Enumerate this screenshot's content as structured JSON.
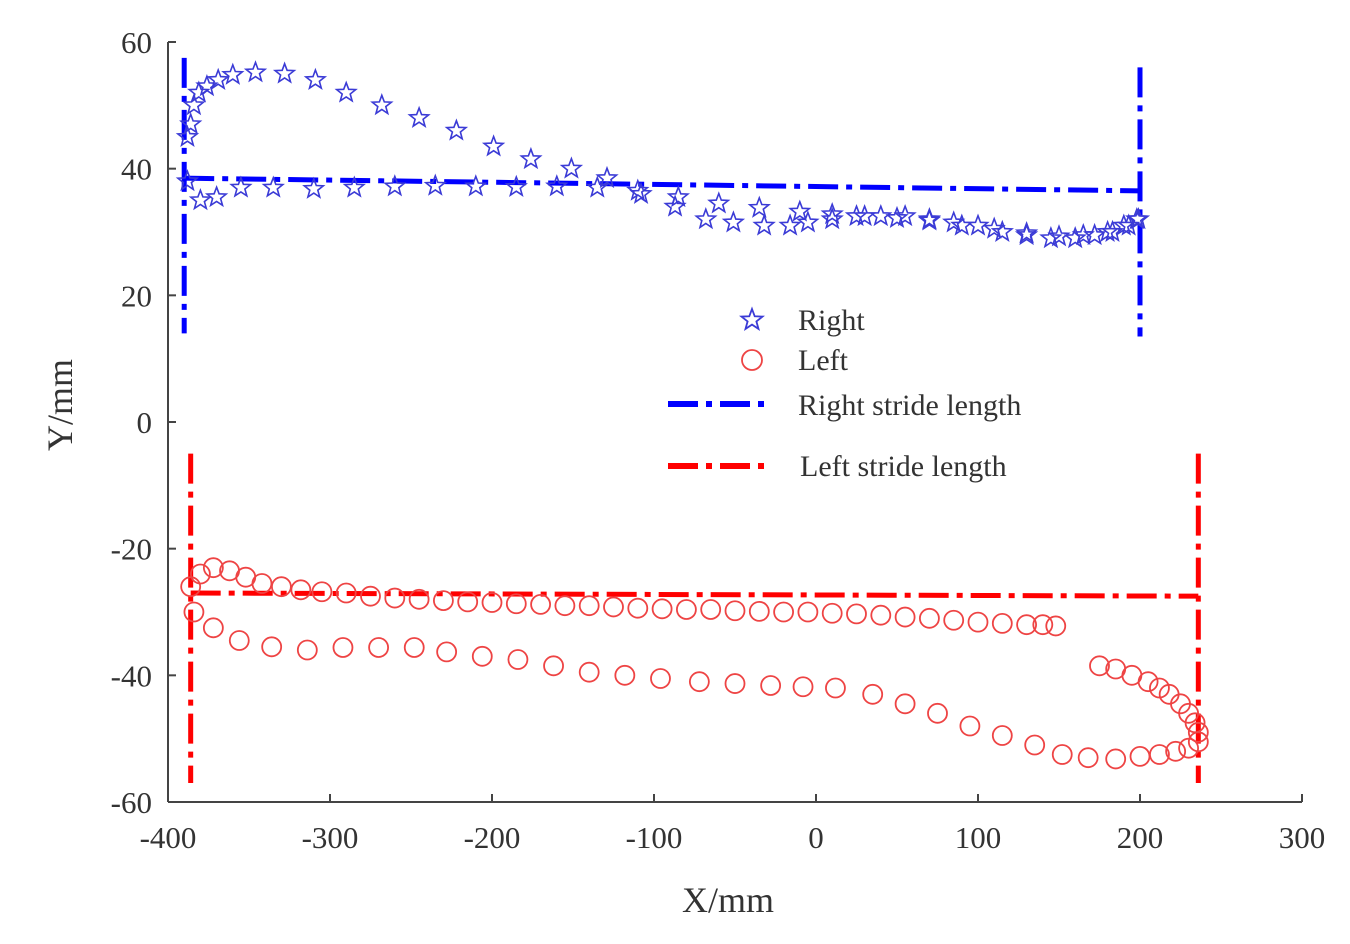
{
  "chart_data": {
    "type": "scatter",
    "title": "",
    "xlabel": "X/mm",
    "ylabel": "Y/mm",
    "xlim": [
      -400,
      300
    ],
    "ylim": [
      -60,
      60
    ],
    "x_ticks": [
      -400,
      -300,
      -200,
      -100,
      0,
      100,
      200,
      300
    ],
    "y_ticks": [
      -60,
      -40,
      -20,
      0,
      20,
      40,
      60
    ],
    "x_tick_labels": [
      "-400",
      "-300",
      "-200",
      "-100",
      "0",
      "100",
      "200",
      "300"
    ],
    "y_tick_labels": [
      "-60",
      "-40",
      "-20",
      "0",
      "20",
      "40",
      "60"
    ],
    "grid": false,
    "legend": {
      "position": "center-right",
      "entries": [
        "Right",
        "Left",
        "Right stride length",
        "Left stride length"
      ]
    },
    "colors": {
      "right": "#3b3bd6",
      "left": "#ee4444",
      "right_stride": "#0000ff",
      "left_stride": "#ff0000"
    },
    "series": [
      {
        "name": "Right",
        "marker": "star",
        "color": "#3b3bd6",
        "x": [
          -388,
          -386,
          -384,
          -381,
          -376,
          -369,
          -360,
          -346,
          -328,
          -309,
          -290,
          -268,
          -245,
          -222,
          -199,
          -176,
          -151,
          -129,
          -108,
          -87,
          -68,
          -51,
          -32,
          -16,
          -5,
          10,
          25,
          40,
          55,
          70,
          85,
          100,
          115,
          130,
          145,
          160,
          172,
          183,
          193,
          199,
          -388,
          -380,
          -370,
          -355,
          -335,
          -310,
          -285,
          -260,
          -235,
          -210,
          -185,
          -160,
          -135,
          -110,
          -85,
          -60,
          -35,
          -10,
          10,
          30,
          50,
          70,
          90,
          110,
          130,
          150,
          165,
          180,
          190,
          198
        ],
        "y": [
          45,
          47,
          50,
          52,
          53,
          54,
          54.8,
          55.2,
          55,
          54,
          52,
          50,
          48,
          46,
          43.5,
          41.5,
          40,
          38.5,
          36,
          34,
          32,
          31.5,
          31,
          31,
          31.5,
          32,
          32.5,
          32.5,
          32.5,
          32,
          31.5,
          31,
          30,
          29.5,
          29,
          29,
          29.5,
          30,
          31,
          32,
          38,
          35,
          35.5,
          37,
          37,
          36.8,
          37,
          37.2,
          37.3,
          37.2,
          37.1,
          37.2,
          37,
          36.5,
          35.5,
          34.5,
          33.8,
          33.2,
          32.8,
          32.5,
          32.2,
          31.8,
          31,
          30.5,
          29.8,
          29.3,
          29.5,
          30,
          31,
          32
        ]
      },
      {
        "name": "Left",
        "marker": "circle",
        "color": "#ee4444",
        "x": [
          -386,
          -380,
          -372,
          -362,
          -352,
          -342,
          -330,
          -318,
          -305,
          -290,
          -275,
          -260,
          -245,
          -230,
          -215,
          -200,
          -185,
          -170,
          -155,
          -140,
          -125,
          -110,
          -95,
          -80,
          -65,
          -50,
          -35,
          -20,
          -5,
          10,
          25,
          40,
          55,
          70,
          85,
          100,
          115,
          130,
          140,
          148,
          -384,
          -372,
          -356,
          -336,
          -314,
          -292,
          -270,
          -248,
          -228,
          -206,
          -184,
          -162,
          -140,
          -118,
          -96,
          -72,
          -50,
          -28,
          -8,
          12,
          35,
          55,
          75,
          95,
          115,
          135,
          152,
          168,
          185,
          200,
          212,
          222,
          230,
          236,
          236,
          175,
          185,
          195,
          205,
          212,
          218,
          225,
          230,
          234
        ],
        "y": [
          -26,
          -24,
          -23,
          -23.5,
          -24.5,
          -25.5,
          -26,
          -26.5,
          -26.8,
          -27,
          -27.5,
          -27.8,
          -28,
          -28.2,
          -28.4,
          -28.5,
          -28.7,
          -28.8,
          -29,
          -29,
          -29.2,
          -29.4,
          -29.5,
          -29.6,
          -29.6,
          -29.8,
          -29.9,
          -30,
          -30,
          -30.2,
          -30.3,
          -30.5,
          -30.8,
          -31,
          -31.3,
          -31.6,
          -31.8,
          -32,
          -32,
          -32.2,
          -30,
          -32.5,
          -34.5,
          -35.5,
          -36,
          -35.6,
          -35.6,
          -35.6,
          -36.3,
          -37,
          -37.5,
          -38.5,
          -39.5,
          -40,
          -40.5,
          -41,
          -41.3,
          -41.6,
          -41.8,
          -42,
          -43,
          -44.5,
          -46,
          -48,
          -49.5,
          -51,
          -52.5,
          -53,
          -53.2,
          -52.8,
          -52.5,
          -52,
          -51.5,
          -50.5,
          -49,
          -38.5,
          -39,
          -40,
          -41,
          -42,
          -43,
          -44.5,
          -46,
          -47.5
        ]
      }
    ],
    "lines": [
      {
        "name": "Right stride length",
        "style": "dash-dot",
        "color": "#0000ff",
        "segments": [
          [
            [
              -390,
              38.5
            ],
            [
              200,
              36.5
            ]
          ],
          [
            [
              -390,
              57.5
            ],
            [
              -390,
              14
            ]
          ],
          [
            [
              200,
              56
            ],
            [
              200,
              13.5
            ]
          ]
        ]
      },
      {
        "name": "Left stride length",
        "style": "dash-dot",
        "color": "#ff0000",
        "segments": [
          [
            [
              -386,
              -27
            ],
            [
              236,
              -27.5
            ]
          ],
          [
            [
              -386,
              -5
            ],
            [
              -386,
              -57
            ]
          ],
          [
            [
              236,
              -5
            ],
            [
              236,
              -57
            ]
          ]
        ]
      }
    ]
  }
}
